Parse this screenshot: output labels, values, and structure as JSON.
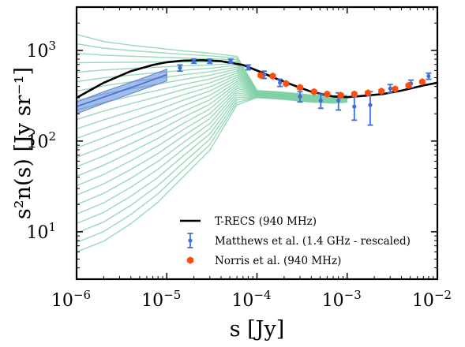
{
  "chart_data": {
    "type": "line",
    "title": "",
    "xlabel": "s [Jy]",
    "ylabel": "s²n(s) [Jy sr⁻¹]",
    "x_scale": "log",
    "y_scale": "log",
    "xlim": [
      1e-06,
      0.01
    ],
    "ylim": [
      3,
      3000
    ],
    "grid": false,
    "legend_position": "lower-right",
    "x_ticks": [
      {
        "base": "10",
        "exp": "−6",
        "value": 1e-06
      },
      {
        "base": "10",
        "exp": "−5",
        "value": 1e-05
      },
      {
        "base": "10",
        "exp": "−4",
        "value": 0.0001
      },
      {
        "base": "10",
        "exp": "−3",
        "value": 0.001
      },
      {
        "base": "10",
        "exp": "−2",
        "value": 0.01
      }
    ],
    "y_ticks": [
      {
        "base": "10",
        "exp": "1",
        "value": 10
      },
      {
        "base": "10",
        "exp": "2",
        "value": 100
      },
      {
        "base": "10",
        "exp": "3",
        "value": 1000
      }
    ],
    "colors": {
      "trecs": "#000000",
      "matthews": "#3f6fd6",
      "norris": "#fc4e12",
      "realizations": "#7fd0a6",
      "band": "#5b84d9"
    },
    "series": [
      {
        "name": "T-RECS (940 MHz)",
        "kind": "line",
        "color": "#000000",
        "x": [
          1e-06,
          2e-06,
          4e-06,
          7e-06,
          1e-05,
          1.5e-05,
          2.5e-05,
          4e-05,
          7e-05,
          0.0001,
          0.00015,
          0.00025,
          0.0004,
          0.0007,
          0.001,
          0.0015,
          0.0025,
          0.004,
          0.007,
          0.01
        ],
        "y": [
          300,
          440,
          590,
          690,
          740,
          770,
          780,
          760,
          690,
          600,
          505,
          415,
          350,
          310,
          305,
          315,
          330,
          360,
          410,
          440
        ]
      },
      {
        "name": "Matthews et al. (1.4 GHz - rescaled)",
        "kind": "errorbar",
        "color": "#3f6fd6",
        "x": [
          1.4e-05,
          2e-05,
          3e-05,
          5.1e-05,
          8e-05,
          0.00012,
          0.00018,
          0.0003,
          0.00051,
          0.0008,
          0.0012,
          0.0018,
          0.003,
          0.0051,
          0.008
        ],
        "y": [
          640,
          760,
          760,
          760,
          650,
          540,
          440,
          310,
          280,
          280,
          240,
          250,
          380,
          430,
          520
        ],
        "yerr_low": [
          50,
          40,
          40,
          40,
          40,
          50,
          40,
          40,
          50,
          60,
          70,
          100,
          40,
          40,
          40
        ],
        "yerr_high": [
          50,
          40,
          40,
          40,
          40,
          50,
          40,
          40,
          50,
          60,
          70,
          100,
          40,
          40,
          40
        ]
      },
      {
        "name": "Norris et al. (940 MHz)",
        "kind": "markers",
        "color": "#fc4e12",
        "x": [
          0.00011,
          0.00015,
          0.00021,
          0.0003,
          0.00043,
          0.0006,
          0.00085,
          0.0012,
          0.0017,
          0.0024,
          0.0034,
          0.0048,
          0.0068
        ],
        "y": [
          530,
          520,
          430,
          390,
          350,
          330,
          320,
          330,
          340,
          355,
          375,
          410,
          450
        ]
      }
    ],
    "band_series": {
      "x": [
        1e-06,
        2e-06,
        5e-06,
        1e-05
      ],
      "y_low": [
        200,
        260,
        360,
        460
      ],
      "y_high": [
        270,
        350,
        480,
        620
      ],
      "y_center": [
        240,
        305,
        420,
        540
      ]
    },
    "realizations_series": {
      "x": [
        1e-06,
        2e-06,
        4e-06,
        8e-06,
        1.5e-05,
        3e-05,
        6e-05,
        0.0001
      ],
      "count": 24,
      "y_start_low": 6,
      "y_start_high": 1500,
      "y_join": 560,
      "y_end": 330
    }
  }
}
